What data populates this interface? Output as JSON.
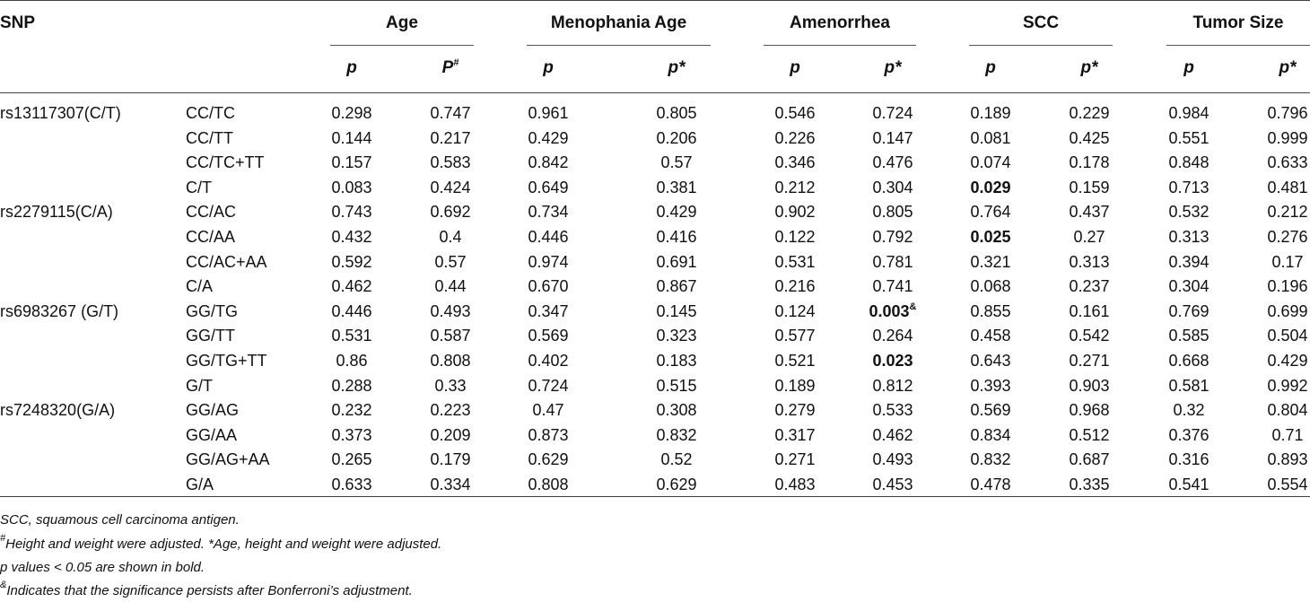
{
  "table": {
    "snp_header": "SNP",
    "groups": [
      "Age",
      "Menophania Age",
      "Amenorrhea",
      "SCC",
      "Tumor Size"
    ],
    "subheaders": [
      {
        "text": "p",
        "sup": ""
      },
      {
        "text": "P",
        "sup": "#"
      },
      {
        "text": "p",
        "sup": ""
      },
      {
        "text": "p*",
        "sup": ""
      },
      {
        "text": "p",
        "sup": ""
      },
      {
        "text": "p*",
        "sup": ""
      },
      {
        "text": "p",
        "sup": ""
      },
      {
        "text": "p*",
        "sup": ""
      },
      {
        "text": "p",
        "sup": ""
      },
      {
        "text": "p*",
        "sup": ""
      }
    ],
    "rows": [
      {
        "snp": "rs13117307(C/T)",
        "model": "CC/TC",
        "values": [
          "0.298",
          "0.747",
          "0.961",
          "0.805",
          "0.546",
          "0.724",
          "0.189",
          "0.229",
          "0.984",
          "0.796"
        ]
      },
      {
        "snp": "",
        "model": "CC/TT",
        "values": [
          "0.144",
          "0.217",
          "0.429",
          "0.206",
          "0.226",
          "0.147",
          "0.081",
          "0.425",
          "0.551",
          "0.999"
        ]
      },
      {
        "snp": "",
        "model": "CC/TC+TT",
        "values": [
          "0.157",
          "0.583",
          "0.842",
          "0.57",
          "0.346",
          "0.476",
          "0.074",
          "0.178",
          "0.848",
          "0.633"
        ]
      },
      {
        "snp": "",
        "model": "C/T",
        "values": [
          "0.083",
          "0.424",
          "0.649",
          "0.381",
          "0.212",
          "0.304",
          "0.029",
          "0.159",
          "0.713",
          "0.481"
        ],
        "bold": [
          6
        ]
      },
      {
        "snp": "rs2279115(C/A)",
        "model": "CC/AC",
        "values": [
          "0.743",
          "0.692",
          "0.734",
          "0.429",
          "0.902",
          "0.805",
          "0.764",
          "0.437",
          "0.532",
          "0.212"
        ]
      },
      {
        "snp": "",
        "model": "CC/AA",
        "values": [
          "0.432",
          "0.4",
          "0.446",
          "0.416",
          "0.122",
          "0.792",
          "0.025",
          "0.27",
          "0.313",
          "0.276"
        ],
        "bold": [
          6
        ]
      },
      {
        "snp": "",
        "model": "CC/AC+AA",
        "values": [
          "0.592",
          "0.57",
          "0.974",
          "0.691",
          "0.531",
          "0.781",
          "0.321",
          "0.313",
          "0.394",
          "0.17"
        ]
      },
      {
        "snp": "",
        "model": "C/A",
        "values": [
          "0.462",
          "0.44",
          "0.670",
          "0.867",
          "0.216",
          "0.741",
          "0.068",
          "0.237",
          "0.304",
          "0.196"
        ]
      },
      {
        "snp": "rs6983267 (G/T)",
        "model": "GG/TG",
        "values": [
          "0.446",
          "0.493",
          "0.347",
          "0.145",
          "0.124",
          "0.003",
          "0.855",
          "0.161",
          "0.769",
          "0.699"
        ],
        "bold": [
          5
        ],
        "sup": {
          "5": "&"
        }
      },
      {
        "snp": "",
        "model": "GG/TT",
        "values": [
          "0.531",
          "0.587",
          "0.569",
          "0.323",
          "0.577",
          "0.264",
          "0.458",
          "0.542",
          "0.585",
          "0.504"
        ]
      },
      {
        "snp": "",
        "model": "GG/TG+TT",
        "values": [
          "0.86",
          "0.808",
          "0.402",
          "0.183",
          "0.521",
          "0.023",
          "0.643",
          "0.271",
          "0.668",
          "0.429"
        ],
        "bold": [
          5
        ]
      },
      {
        "snp": "",
        "model": "G/T",
        "values": [
          "0.288",
          "0.33",
          "0.724",
          "0.515",
          "0.189",
          "0.812",
          "0.393",
          "0.903",
          "0.581",
          "0.992"
        ]
      },
      {
        "snp": "rs7248320(G/A)",
        "model": "GG/AG",
        "values": [
          "0.232",
          "0.223",
          "0.47",
          "0.308",
          "0.279",
          "0.533",
          "0.569",
          "0.968",
          "0.32",
          "0.804"
        ]
      },
      {
        "snp": "",
        "model": "GG/AA",
        "values": [
          "0.373",
          "0.209",
          "0.873",
          "0.832",
          "0.317",
          "0.462",
          "0.834",
          "0.512",
          "0.376",
          "0.71"
        ]
      },
      {
        "snp": "",
        "model": "GG/AG+AA",
        "values": [
          "0.265",
          "0.179",
          "0.629",
          "0.52",
          "0.271",
          "0.493",
          "0.832",
          "0.687",
          "0.316",
          "0.893"
        ]
      },
      {
        "snp": "",
        "model": "G/A",
        "values": [
          "0.633",
          "0.334",
          "0.808",
          "0.629",
          "0.483",
          "0.453",
          "0.478",
          "0.335",
          "0.541",
          "0.554"
        ]
      }
    ]
  },
  "footnotes": [
    {
      "sup": "",
      "text": "SCC, squamous cell carcinoma antigen."
    },
    {
      "sup": "#",
      "text": "Height and weight were adjusted. *Age, height and weight were adjusted."
    },
    {
      "sup": "",
      "text": "p values < 0.05 are shown in bold."
    },
    {
      "sup": "&",
      "text": "Indicates that the significance persists after Bonferroni’s adjustment."
    }
  ]
}
